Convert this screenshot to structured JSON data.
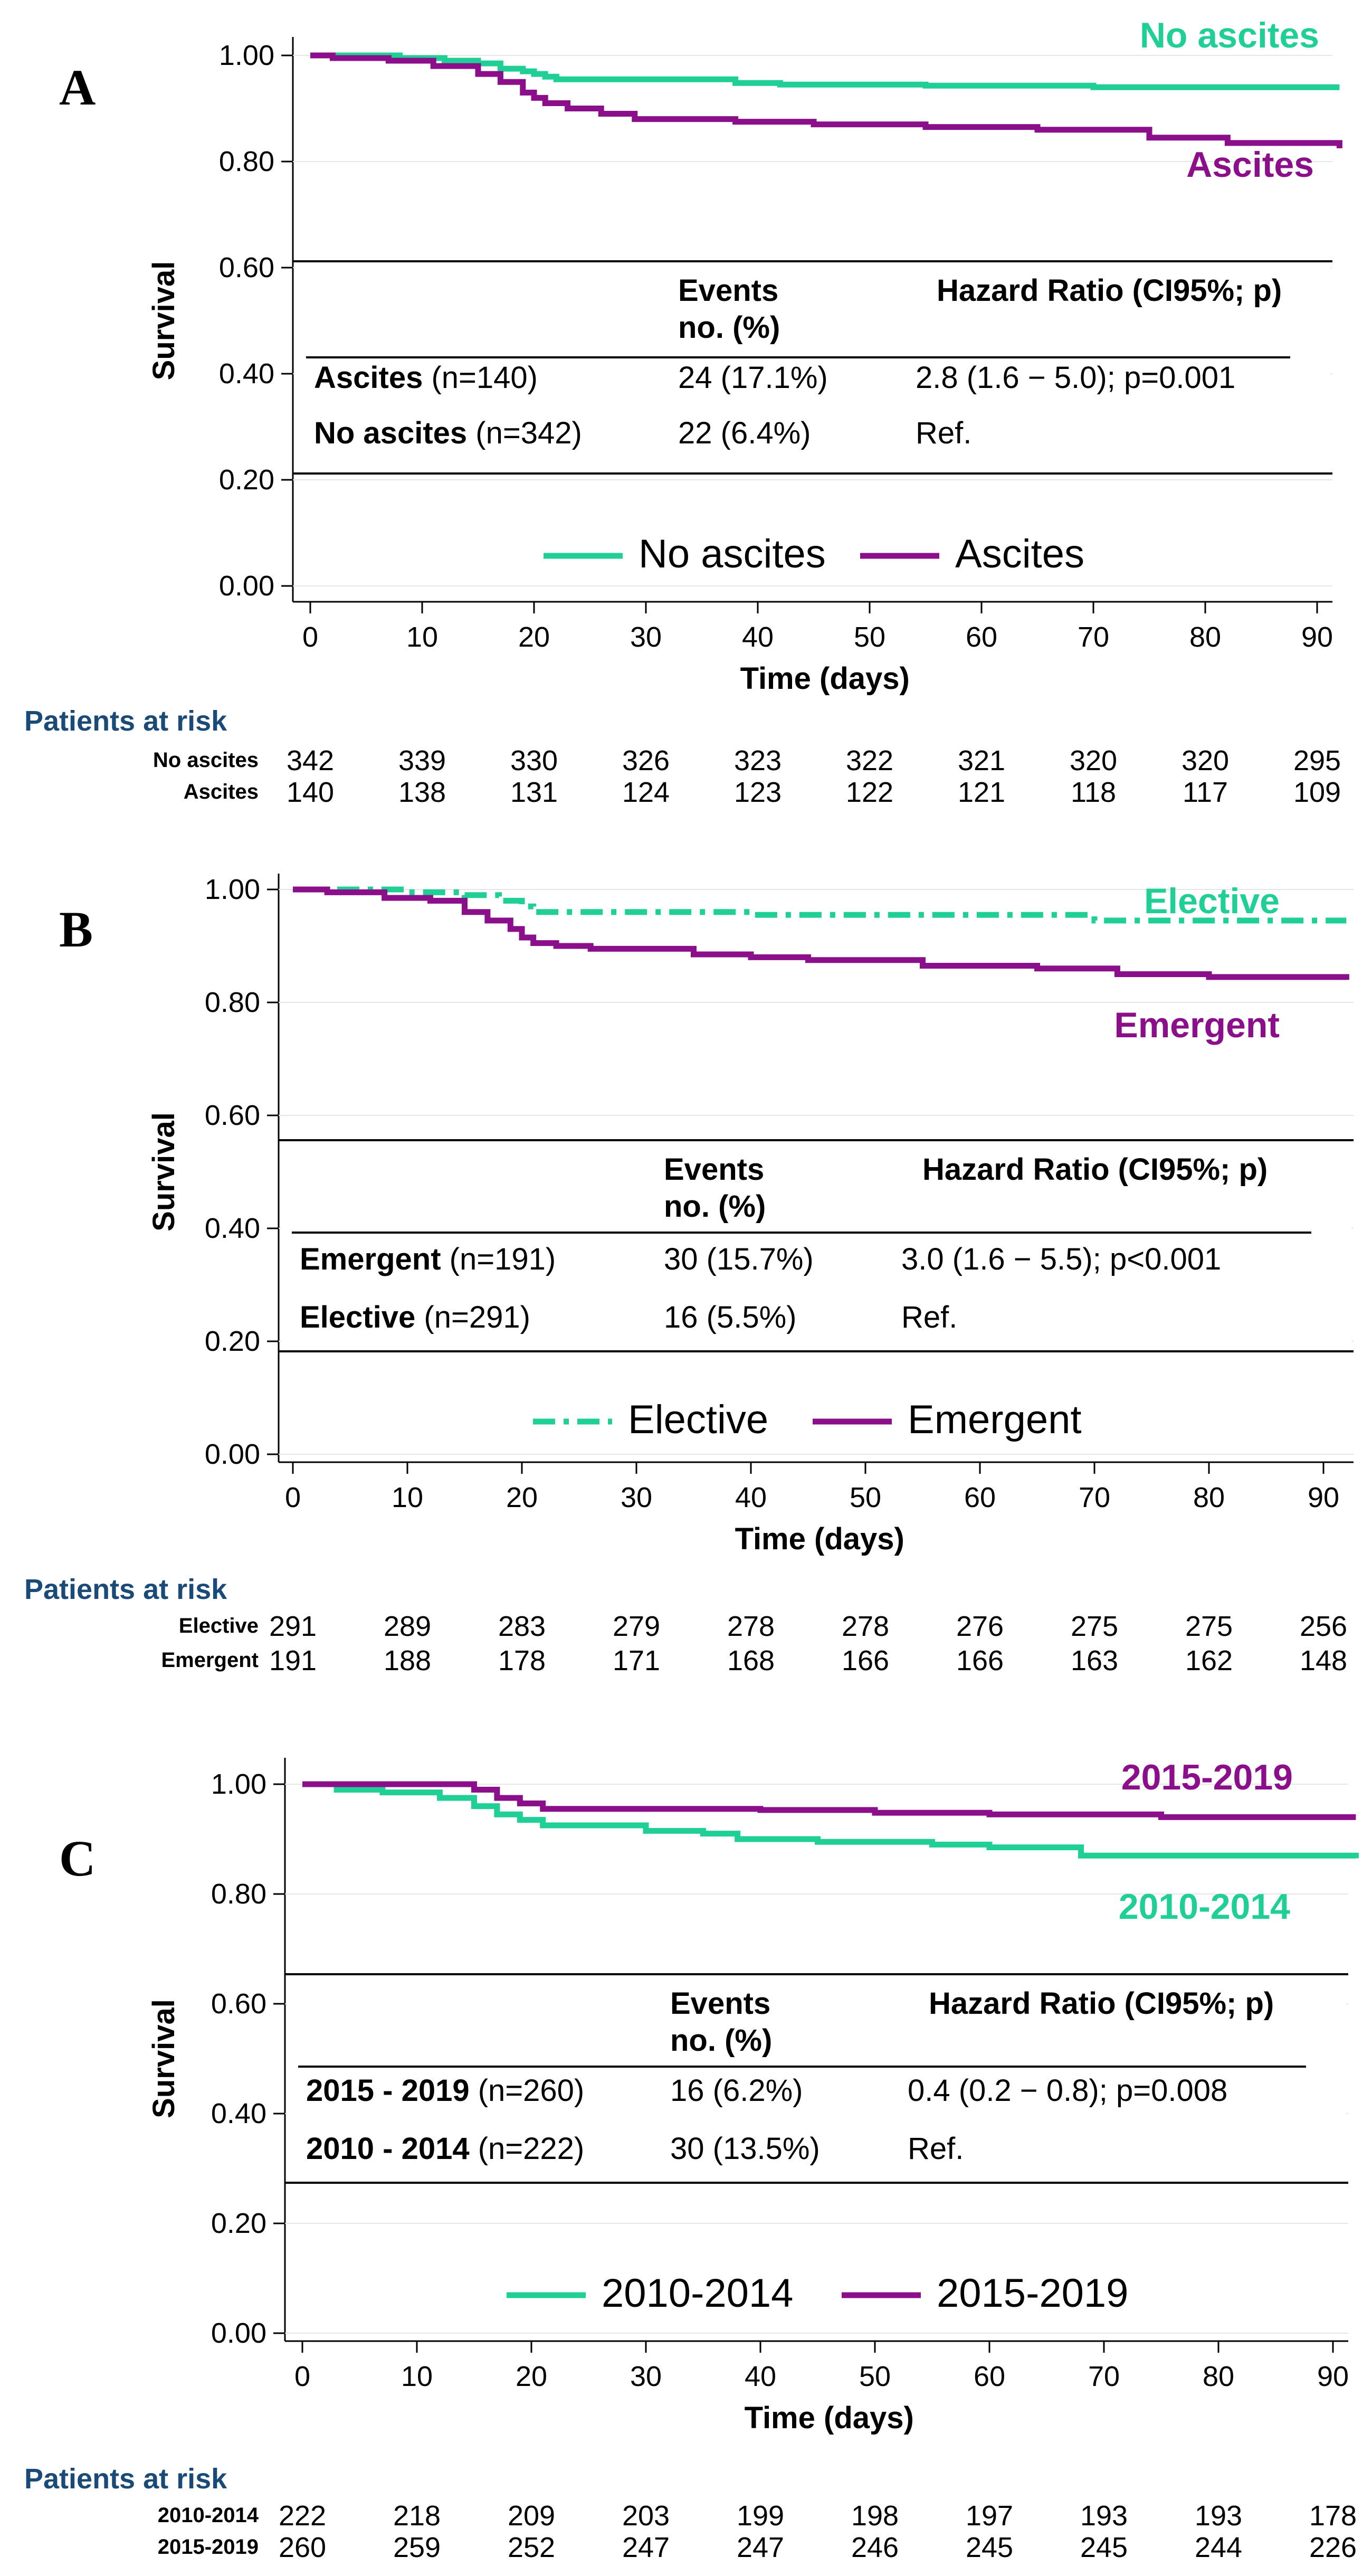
{
  "colors": {
    "green": "#1fcf96",
    "purple": "#8b0e8b",
    "risk_title": "#1a4a78"
  },
  "chart_data": [
    {
      "panel": "A",
      "type": "line",
      "title": "",
      "xlabel": "Time (days)",
      "ylabel": "Survival",
      "xlim": [
        0,
        92
      ],
      "ylim": [
        0,
        1
      ],
      "xticks": [
        "0",
        "10",
        "20",
        "30",
        "40",
        "50",
        "60",
        "70",
        "80",
        "90"
      ],
      "yticks": [
        "0.00",
        "0.20",
        "0.40",
        "0.60",
        "0.80",
        "1.00"
      ],
      "series": [
        {
          "name": "No ascites",
          "color": "#1fcf96",
          "style": "solid",
          "x": [
            0,
            4,
            8,
            12,
            15,
            17,
            19,
            20,
            21,
            22,
            30,
            38,
            42,
            55,
            70,
            92
          ],
          "y": [
            1.0,
            1.0,
            0.995,
            0.99,
            0.985,
            0.975,
            0.97,
            0.965,
            0.96,
            0.955,
            0.955,
            0.948,
            0.945,
            0.943,
            0.94,
            0.94
          ]
        },
        {
          "name": "Ascites",
          "color": "#8b0e8b",
          "style": "solid",
          "x": [
            0,
            2,
            7,
            11,
            15,
            17,
            19,
            20,
            21,
            23,
            26,
            29,
            31,
            38,
            45,
            55,
            65,
            75,
            82,
            92
          ],
          "y": [
            1.0,
            0.995,
            0.99,
            0.98,
            0.965,
            0.95,
            0.93,
            0.92,
            0.91,
            0.9,
            0.89,
            0.88,
            0.88,
            0.875,
            0.87,
            0.865,
            0.86,
            0.845,
            0.835,
            0.825
          ]
        }
      ],
      "end_labels": [
        "No ascites",
        "Ascites"
      ],
      "legend": [
        "No ascites",
        "Ascites"
      ],
      "table": {
        "header_events": "Events",
        "header_events2": "no. (%)",
        "header_hr": "Hazard Ratio (CI95%; p)",
        "rows": [
          {
            "name_bold": "Ascites",
            "n": " (n=140)",
            "events": "24 (17.1%)",
            "hr": "2.8 (1.6 − 5.0); p=0.001"
          },
          {
            "name_bold": "No ascites",
            "n": " (n=342)",
            "events": "22 (6.4%)",
            "hr": "Ref."
          }
        ]
      },
      "risk": {
        "title": "Patients at risk",
        "rows": [
          {
            "label": "No ascites",
            "values": [
              "342",
              "339",
              "330",
              "326",
              "323",
              "322",
              "321",
              "320",
              "320",
              "295"
            ]
          },
          {
            "label": "Ascites",
            "values": [
              "140",
              "138",
              "131",
              "124",
              "123",
              "122",
              "121",
              "118",
              "117",
              "109"
            ]
          }
        ]
      }
    },
    {
      "panel": "B",
      "type": "line",
      "title": "",
      "xlabel": "Time (days)",
      "ylabel": "Survival",
      "xlim": [
        0,
        92
      ],
      "ylim": [
        0,
        1
      ],
      "xticks": [
        "0",
        "10",
        "20",
        "30",
        "40",
        "50",
        "60",
        "70",
        "80",
        "90"
      ],
      "yticks": [
        "0.00",
        "0.20",
        "0.40",
        "0.60",
        "0.80",
        "1.00"
      ],
      "series": [
        {
          "name": "Elective",
          "color": "#1fcf96",
          "style": "dashdot",
          "x": [
            0,
            5,
            10,
            15,
            18,
            20,
            21,
            30,
            40,
            55,
            70,
            92
          ],
          "y": [
            1.0,
            1.0,
            0.995,
            0.99,
            0.98,
            0.97,
            0.96,
            0.96,
            0.955,
            0.955,
            0.945,
            0.945
          ]
        },
        {
          "name": "Emergent",
          "color": "#8b0e8b",
          "style": "solid",
          "x": [
            0,
            3,
            8,
            12,
            15,
            17,
            19,
            20,
            21,
            23,
            26,
            30,
            35,
            40,
            45,
            55,
            65,
            72,
            80,
            92
          ],
          "y": [
            1.0,
            0.995,
            0.985,
            0.98,
            0.96,
            0.945,
            0.93,
            0.915,
            0.905,
            0.9,
            0.895,
            0.895,
            0.885,
            0.88,
            0.875,
            0.865,
            0.86,
            0.85,
            0.845,
            0.84
          ]
        }
      ],
      "end_labels": [
        "Elective",
        "Emergent"
      ],
      "legend": [
        "Elective",
        "Emergent"
      ],
      "table": {
        "header_events": "Events",
        "header_events2": "no. (%)",
        "header_hr": "Hazard Ratio (CI95%; p)",
        "rows": [
          {
            "name_bold": "Emergent",
            "n": " (n=191)",
            "events": "30 (15.7%)",
            "hr": "3.0 (1.6 − 5.5); p<0.001"
          },
          {
            "name_bold": "Elective",
            "n": " (n=291)",
            "events": "16 (5.5%)",
            "hr": "Ref."
          }
        ]
      },
      "risk": {
        "title": "Patients at risk",
        "rows": [
          {
            "label": "Elective",
            "values": [
              "291",
              "289",
              "283",
              "279",
              "278",
              "278",
              "276",
              "275",
              "275",
              "256"
            ]
          },
          {
            "label": "Emergent",
            "values": [
              "191",
              "188",
              "178",
              "171",
              "168",
              "166",
              "166",
              "163",
              "162",
              "148"
            ]
          }
        ]
      }
    },
    {
      "panel": "C",
      "type": "line",
      "title": "",
      "xlabel": "Time (days)",
      "ylabel": "Survival",
      "xlim": [
        0,
        92
      ],
      "ylim": [
        0,
        1
      ],
      "xticks": [
        "0",
        "10",
        "20",
        "30",
        "40",
        "50",
        "60",
        "70",
        "80",
        "90"
      ],
      "yticks": [
        "0.00",
        "0.20",
        "0.40",
        "0.60",
        "0.80",
        "1.00"
      ],
      "series": [
        {
          "name": "2010-2014",
          "color": "#1fcf96",
          "style": "solid",
          "x": [
            0,
            3,
            7,
            12,
            15,
            17,
            19,
            21,
            30,
            35,
            38,
            45,
            55,
            60,
            68,
            75,
            92
          ],
          "y": [
            1.0,
            0.99,
            0.985,
            0.975,
            0.96,
            0.945,
            0.935,
            0.925,
            0.915,
            0.91,
            0.9,
            0.895,
            0.89,
            0.885,
            0.87,
            0.87,
            0.865
          ]
        },
        {
          "name": "2015-2019",
          "color": "#8b0e8b",
          "style": "solid",
          "x": [
            0,
            10,
            15,
            17,
            19,
            21,
            30,
            40,
            50,
            60,
            75,
            92
          ],
          "y": [
            1.0,
            1.0,
            0.99,
            0.975,
            0.965,
            0.955,
            0.955,
            0.953,
            0.948,
            0.945,
            0.94,
            0.94
          ]
        }
      ],
      "end_labels": [
        "2015-2019",
        "2010-2014"
      ],
      "legend": [
        "2010-2014",
        "2015-2019"
      ],
      "table": {
        "header_events": "Events",
        "header_events2": "no. (%)",
        "header_hr": "Hazard Ratio (CI95%; p)",
        "rows": [
          {
            "name_bold": "2015 - 2019",
            "n": " (n=260)",
            "events": "16 (6.2%)",
            "hr": "0.4 (0.2 − 0.8); p=0.008"
          },
          {
            "name_bold": "2010 - 2014",
            "n": " (n=222)",
            "events": "30 (13.5%)",
            "hr": "Ref."
          }
        ]
      },
      "risk": {
        "title": "Patients at risk",
        "rows": [
          {
            "label": "2010-2014",
            "values": [
              "222",
              "218",
              "209",
              "203",
              "199",
              "198",
              "197",
              "193",
              "193",
              "178"
            ]
          },
          {
            "label": "2015-2019",
            "values": [
              "260",
              "259",
              "252",
              "247",
              "247",
              "246",
              "245",
              "245",
              "244",
              "226"
            ]
          }
        ]
      }
    }
  ]
}
